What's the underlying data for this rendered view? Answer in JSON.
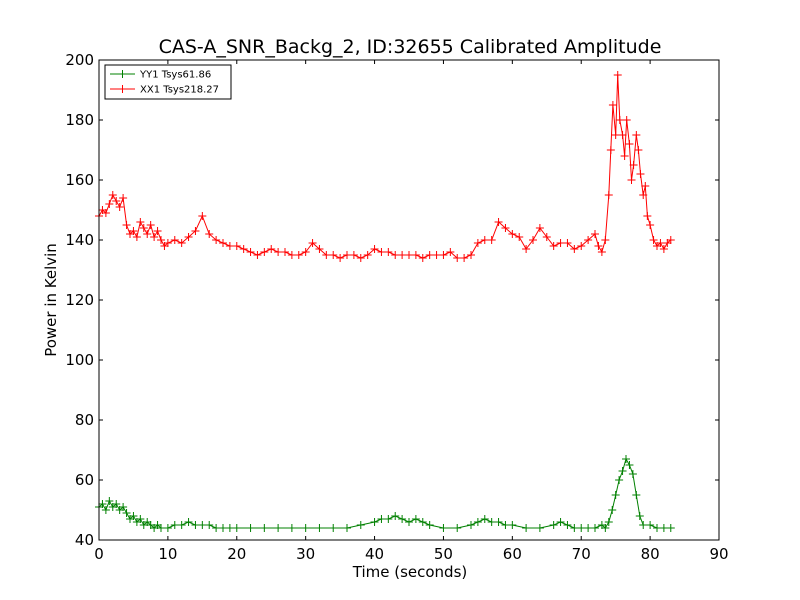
{
  "chart_data": {
    "type": "line",
    "title": "CAS-A_SNR_Backg_2, ID:32655 Calibrated Amplitude",
    "xlabel": "Time (seconds)",
    "ylabel": "Power in Kelvin",
    "xlim": [
      0,
      90
    ],
    "ylim": [
      40,
      200
    ],
    "xticks": [
      0,
      10,
      20,
      30,
      40,
      50,
      60,
      70,
      80,
      90
    ],
    "yticks": [
      40,
      60,
      80,
      100,
      120,
      140,
      160,
      180,
      200
    ],
    "grid": false,
    "legend_position": "top-left",
    "marker": "+",
    "series": [
      {
        "name": "YY1 Tsys61.86",
        "color": "#008000",
        "x": [
          0,
          0.5,
          1,
          1.5,
          2,
          2.5,
          3,
          3.5,
          4,
          4.5,
          5,
          5.5,
          6,
          6.5,
          7,
          7.5,
          8,
          8.5,
          9,
          10,
          11,
          12,
          13,
          14,
          15,
          16,
          17,
          18,
          19,
          20,
          22,
          24,
          26,
          28,
          30,
          32,
          34,
          36,
          38,
          40,
          41,
          42,
          43,
          44,
          45,
          46,
          47,
          48,
          50,
          52,
          54,
          55,
          56,
          57,
          58,
          59,
          60,
          62,
          64,
          66,
          67,
          68,
          69,
          70,
          71,
          72,
          73,
          73.5,
          74,
          74.5,
          75,
          75.5,
          76,
          76.5,
          77,
          77.5,
          78,
          78.5,
          79,
          80,
          81,
          82,
          83
        ],
        "values": [
          51,
          52,
          50,
          53,
          51,
          52,
          50,
          51,
          49,
          47,
          48,
          46,
          47,
          45,
          46,
          45,
          44,
          45,
          44,
          44,
          45,
          45,
          46,
          45,
          45,
          45,
          44,
          44,
          44,
          44,
          44,
          44,
          44,
          44,
          44,
          44,
          44,
          44,
          45,
          46,
          47,
          47,
          48,
          47,
          46,
          47,
          46,
          45,
          44,
          44,
          45,
          46,
          47,
          46,
          46,
          45,
          45,
          44,
          44,
          45,
          46,
          45,
          44,
          44,
          44,
          44,
          45,
          44,
          46,
          50,
          55,
          60,
          63,
          67,
          65,
          62,
          55,
          48,
          45,
          45,
          44,
          44,
          44
        ]
      },
      {
        "name": "XX1 Tsys218.27",
        "color": "#ff0000",
        "x": [
          0,
          0.5,
          1,
          1.5,
          2,
          2.5,
          3,
          3.5,
          4,
          4.5,
          5,
          5.5,
          6,
          6.5,
          7,
          7.5,
          8,
          8.5,
          9,
          9.5,
          10,
          11,
          12,
          13,
          14,
          15,
          16,
          17,
          18,
          19,
          20,
          21,
          22,
          23,
          24,
          25,
          26,
          27,
          28,
          29,
          30,
          31,
          32,
          33,
          34,
          35,
          36,
          37,
          38,
          39,
          40,
          41,
          42,
          43,
          44,
          45,
          46,
          47,
          48,
          49,
          50,
          51,
          52,
          53,
          54,
          55,
          56,
          57,
          58,
          59,
          60,
          61,
          62,
          63,
          64,
          65,
          66,
          67,
          68,
          69,
          70,
          71,
          72,
          72.5,
          73,
          73.5,
          74,
          74.3,
          74.6,
          75,
          75.3,
          75.6,
          76,
          76.3,
          76.6,
          77,
          77.3,
          77.6,
          78,
          78.3,
          78.6,
          79,
          79.3,
          79.6,
          80,
          80.5,
          81,
          81.5,
          82,
          82.5,
          83
        ],
        "values": [
          148,
          150,
          149,
          152,
          155,
          153,
          151,
          154,
          145,
          142,
          143,
          141,
          146,
          144,
          142,
          145,
          141,
          143,
          140,
          138,
          139,
          140,
          139,
          141,
          143,
          148,
          142,
          140,
          139,
          138,
          138,
          137,
          136,
          135,
          136,
          137,
          136,
          136,
          135,
          135,
          136,
          139,
          137,
          135,
          135,
          134,
          135,
          135,
          134,
          135,
          137,
          136,
          136,
          135,
          135,
          135,
          135,
          134,
          135,
          135,
          135,
          136,
          134,
          134,
          135,
          139,
          140,
          140,
          146,
          144,
          142,
          141,
          137,
          140,
          144,
          141,
          138,
          139,
          139,
          137,
          138,
          140,
          142,
          138,
          136,
          140,
          155,
          170,
          185,
          175,
          195,
          180,
          175,
          168,
          180,
          172,
          160,
          165,
          175,
          170,
          162,
          155,
          158,
          148,
          145,
          140,
          138,
          139,
          137,
          139,
          140
        ]
      }
    ]
  }
}
